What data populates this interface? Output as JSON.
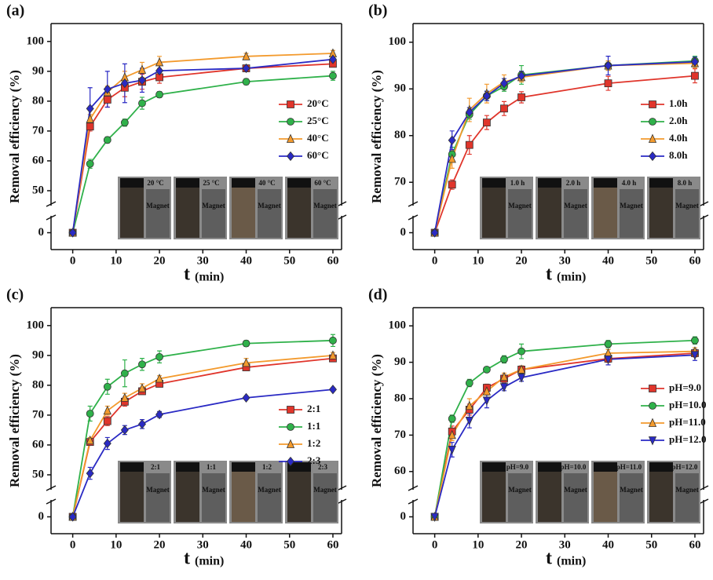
{
  "chart_data": [
    {
      "type": "line",
      "panel_label": "(a)",
      "ylabel": "Removal efficiency (%)",
      "xlabel": "t",
      "xunit": "(min)",
      "x": [
        0,
        4,
        8,
        12,
        16,
        20,
        40,
        60
      ],
      "xlim": [
        -5,
        62
      ],
      "xticks": [
        0,
        10,
        20,
        30,
        40,
        50,
        60
      ],
      "ylim": [
        -5,
        106
      ],
      "ybreak": [
        5,
        45
      ],
      "yticks": [
        0,
        50,
        60,
        70,
        80,
        90,
        100
      ],
      "legend": "center right",
      "series": [
        {
          "name": "20°C",
          "color": "#e0352b",
          "marker": "square",
          "values": [
            0,
            71.5,
            80.5,
            84.5,
            86.5,
            88,
            91,
            92.5
          ],
          "errors": [
            0,
            1.5,
            2.5,
            3,
            2.5,
            2,
            1,
            1
          ]
        },
        {
          "name": "25°C",
          "color": "#2fb14a",
          "marker": "circle",
          "values": [
            0,
            59,
            67,
            72.8,
            79.3,
            82.2,
            86.5,
            88.5
          ],
          "errors": [
            0,
            1.5,
            1,
            1.2,
            2,
            1,
            1,
            1.5
          ]
        },
        {
          "name": "40°C",
          "color": "#f39a2d",
          "marker": "triangle-up",
          "values": [
            0,
            74,
            83,
            88,
            90.5,
            93,
            95,
            96
          ],
          "errors": [
            0,
            1.5,
            2,
            2,
            2.5,
            2,
            1,
            1
          ]
        },
        {
          "name": "60°C",
          "color": "#2a2ac4",
          "marker": "diamond",
          "values": [
            0,
            77.5,
            84,
            86,
            87,
            90.2,
            91,
            94
          ],
          "errors": [
            0,
            7,
            6,
            6.5,
            4,
            2.5,
            1,
            1
          ]
        }
      ],
      "inset_labels": [
        "20 °C",
        "25 °C",
        "40 °C",
        "60 °C"
      ],
      "inset_caption": "Magnet"
    },
    {
      "type": "line",
      "panel_label": "(b)",
      "ylabel": "Removal efficiency (%)",
      "xlabel": "t",
      "xunit": "(min)",
      "x": [
        0,
        4,
        8,
        12,
        16,
        20,
        40,
        60
      ],
      "xlim": [
        -5,
        62
      ],
      "xticks": [
        0,
        10,
        20,
        30,
        40,
        50,
        60
      ],
      "ylim": [
        -5,
        104
      ],
      "ybreak": [
        5,
        65
      ],
      "yticks": [
        0,
        70,
        80,
        90,
        100
      ],
      "legend": "center right",
      "series": [
        {
          "name": "1.0h",
          "color": "#e0352b",
          "marker": "square",
          "values": [
            0,
            69.5,
            78,
            82.8,
            85.8,
            88.2,
            91.2,
            92.8
          ],
          "errors": [
            0,
            1,
            2,
            1.5,
            1.5,
            1.2,
            1.5,
            1.5
          ]
        },
        {
          "name": "2.0h",
          "color": "#2fb14a",
          "marker": "circle",
          "values": [
            0,
            76,
            84.5,
            88.5,
            90.5,
            93,
            95,
            96
          ],
          "errors": [
            0,
            1.5,
            1,
            1,
            1,
            2,
            1,
            1
          ]
        },
        {
          "name": "4.0h",
          "color": "#f39a2d",
          "marker": "triangle-up",
          "values": [
            0,
            75,
            85.5,
            89,
            91.5,
            92.5,
            95,
            95.5
          ],
          "errors": [
            0,
            2,
            2.5,
            2,
            1.5,
            1,
            1,
            1
          ]
        },
        {
          "name": "8.0h",
          "color": "#2a2ac4",
          "marker": "diamond",
          "values": [
            0,
            79,
            85,
            88.5,
            91.2,
            92.8,
            95,
            95.8
          ],
          "errors": [
            0,
            2,
            1,
            1,
            1,
            1,
            2,
            1
          ]
        }
      ],
      "inset_labels": [
        "1.0 h",
        "2.0 h",
        "4.0 h",
        "8.0 h"
      ],
      "inset_caption": "Magnet"
    },
    {
      "type": "line",
      "panel_label": "(c)",
      "ylabel": "Removal efficiency (%)",
      "xlabel": "t",
      "xunit": "(min)",
      "x": [
        0,
        4,
        8,
        12,
        16,
        20,
        40,
        60
      ],
      "xlim": [
        -5,
        62
      ],
      "xticks": [
        0,
        10,
        20,
        30,
        40,
        50,
        60
      ],
      "ylim": [
        -5,
        106
      ],
      "ybreak": [
        5,
        45
      ],
      "yticks": [
        0,
        50,
        60,
        70,
        80,
        90,
        100
      ],
      "legend": "lower right",
      "series": [
        {
          "name": "2:1",
          "color": "#e0352b",
          "marker": "square",
          "values": [
            0,
            61,
            68,
            74.5,
            78,
            80.5,
            86,
            89
          ],
          "errors": [
            0,
            1,
            1.5,
            1.5,
            1,
            1,
            1,
            1
          ]
        },
        {
          "name": "1:1",
          "color": "#2fb14a",
          "marker": "circle",
          "values": [
            0,
            70.5,
            79.5,
            84,
            87,
            89.5,
            94,
            95
          ],
          "errors": [
            0,
            2.5,
            2.5,
            4.5,
            2,
            2,
            1,
            2
          ]
        },
        {
          "name": "1:2",
          "color": "#f39a2d",
          "marker": "triangle-up",
          "values": [
            0,
            61.5,
            71.5,
            75.8,
            79,
            82.2,
            87.5,
            90
          ],
          "errors": [
            0,
            1,
            1.5,
            1.5,
            1.5,
            1,
            1.5,
            1
          ]
        },
        {
          "name": "2:3",
          "color": "#2a2ac4",
          "marker": "diamond",
          "values": [
            0,
            50.5,
            60.5,
            65,
            67,
            70.2,
            75.8,
            78.6
          ],
          "errors": [
            0,
            2,
            2,
            1.5,
            1.5,
            1,
            0.5,
            0.5
          ]
        }
      ],
      "inset_labels": [
        "2:1",
        "1:1",
        "1:2",
        "2:3"
      ],
      "inset_caption": "Magnet"
    },
    {
      "type": "line",
      "panel_label": "(d)",
      "ylabel": "Removal efficiency (%)",
      "xlabel": "t",
      "xunit": "(min)",
      "x": [
        0,
        4,
        8,
        12,
        16,
        20,
        40,
        60
      ],
      "xlim": [
        -5,
        62
      ],
      "xticks": [
        0,
        10,
        20,
        30,
        40,
        50,
        60
      ],
      "ylim": [
        -5,
        105
      ],
      "ybreak": [
        5,
        55
      ],
      "yticks": [
        0,
        60,
        70,
        80,
        90,
        100
      ],
      "legend": "center right",
      "series": [
        {
          "name": "pH=9.0",
          "color": "#e0352b",
          "marker": "square",
          "values": [
            0,
            71,
            77,
            83,
            85.5,
            88,
            91,
            92.5
          ],
          "errors": [
            0,
            1.5,
            1.5,
            1,
            1,
            1,
            1,
            1
          ]
        },
        {
          "name": "pH=10.0",
          "color": "#2fb14a",
          "marker": "circle",
          "values": [
            0,
            74.5,
            84.3,
            88,
            90.8,
            93,
            95,
            96
          ],
          "errors": [
            0,
            1,
            1,
            0.5,
            1,
            2,
            1,
            1
          ]
        },
        {
          "name": "pH=11.0",
          "color": "#f39a2d",
          "marker": "triangle-up",
          "values": [
            0,
            70,
            78,
            82,
            86,
            88,
            92.5,
            93
          ],
          "errors": [
            0,
            1.5,
            2,
            1,
            1,
            1,
            1,
            1
          ]
        },
        {
          "name": "pH=12.0",
          "color": "#2a2ac4",
          "marker": "triangle-down",
          "values": [
            0,
            66,
            74,
            79.5,
            83.2,
            85.8,
            90.8,
            92
          ],
          "errors": [
            0,
            2,
            2,
            2,
            1,
            1,
            1.5,
            1.5
          ]
        }
      ],
      "inset_labels": [
        "pH=9.0",
        "pH=10.0",
        "pH=11.0",
        "pH=12.0"
      ],
      "inset_caption": "Magnet"
    }
  ]
}
